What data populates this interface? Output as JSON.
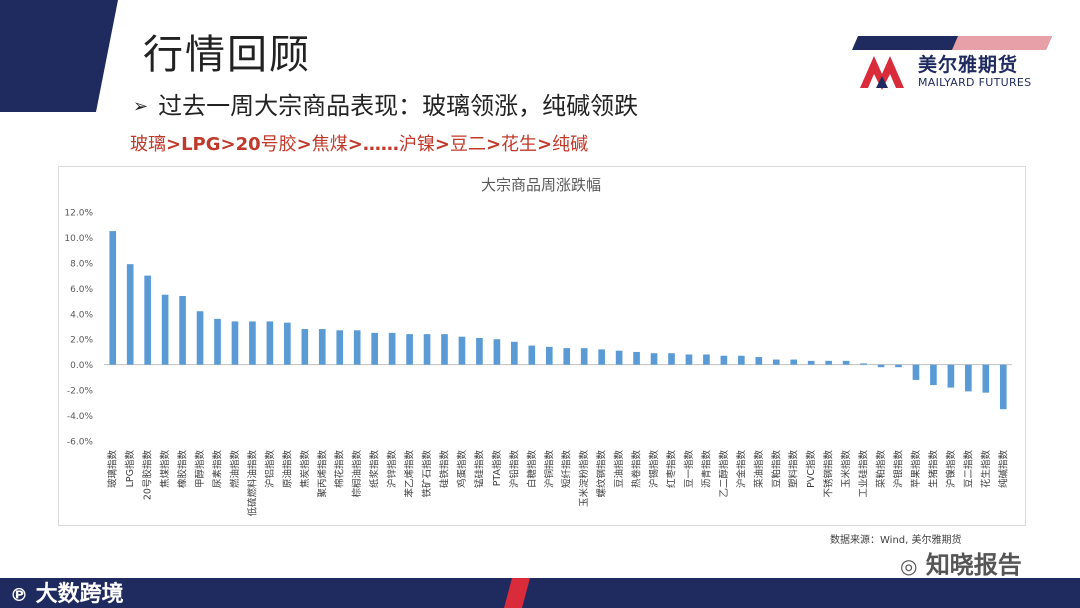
{
  "slide": {
    "title": "行情回顾",
    "subtitle": "过去一周大宗商品表现：玻璃领涨，纯碱领跌",
    "ranking": [
      {
        "text": "玻璃",
        "bold": false
      },
      {
        "text": ">LPG>20",
        "bold": true
      },
      {
        "text": "号胶",
        "bold": false
      },
      {
        "text": ">",
        "bold": true
      },
      {
        "text": "焦煤",
        "bold": false
      },
      {
        "text": ">……",
        "bold": true
      },
      {
        "text": "沪镍",
        "bold": false
      },
      {
        "text": ">",
        "bold": true
      },
      {
        "text": "豆二",
        "bold": false
      },
      {
        "text": ">",
        "bold": true
      },
      {
        "text": "花生",
        "bold": false
      },
      {
        "text": ">",
        "bold": true
      },
      {
        "text": "纯碱",
        "bold": false
      }
    ]
  },
  "logo": {
    "cn": "美尔雅期货",
    "en": "MAILYARD FUTURES"
  },
  "source": "数据来源：Wind, 美尔雅期货",
  "footer": {
    "brand": "大数跨境",
    "watermark": "知晓报告"
  },
  "colors": {
    "bar": "#5b9bd5",
    "navy": "#1f2a5e",
    "red": "#c0392b",
    "accent_red": "#d92b3a"
  },
  "chart_data": {
    "type": "bar",
    "title": "大宗商品周涨跌幅",
    "xlabel": "",
    "ylabel": "",
    "ylim": [
      -0.06,
      0.12
    ],
    "yticks": [
      0.12,
      0.1,
      0.08,
      0.06,
      0.04,
      0.02,
      0.0,
      -0.02,
      -0.04,
      -0.06
    ],
    "ytick_labels": [
      "12.0%",
      "10.0%",
      "8.0%",
      "6.0%",
      "4.0%",
      "2.0%",
      "0.0%",
      "-2.0%",
      "-4.0%",
      "-6.0%"
    ],
    "grid": false,
    "categories": [
      "玻璃指数",
      "LPG指数",
      "20号胶指数",
      "焦煤指数",
      "橡胶指数",
      "甲醇指数",
      "尿素指数",
      "燃油指数",
      "低硫燃料油指数",
      "沪铝指数",
      "原油指数",
      "焦炭指数",
      "聚丙烯指数",
      "棉花指数",
      "棕榈油指数",
      "纸浆指数",
      "沪锌指数",
      "苯乙烯指数",
      "铁矿石指数",
      "硅铁指数",
      "鸡蛋指数",
      "锰硅指数",
      "PTA指数",
      "沪铅指数",
      "白糖指数",
      "沪铜指数",
      "短纤指数",
      "玉米淀粉指数",
      "螺纹钢指数",
      "豆油指数",
      "热卷指数",
      "沪锡指数",
      "红枣指数",
      "豆一指数",
      "沥青指数",
      "乙二醇指数",
      "沪金指数",
      "菜油指数",
      "豆粕指数",
      "塑料指数",
      "PVC指数",
      "不锈钢指数",
      "玉米指数",
      "工业硅指数",
      "菜粕指数",
      "沪银指数",
      "苹果指数",
      "生猪指数",
      "沪镍指数",
      "豆二指数",
      "花生指数",
      "纯碱指数"
    ],
    "values": [
      0.105,
      0.079,
      0.07,
      0.055,
      0.054,
      0.042,
      0.036,
      0.034,
      0.034,
      0.034,
      0.033,
      0.028,
      0.028,
      0.027,
      0.027,
      0.025,
      0.025,
      0.024,
      0.024,
      0.024,
      0.022,
      0.021,
      0.02,
      0.018,
      0.015,
      0.014,
      0.013,
      0.013,
      0.012,
      0.011,
      0.01,
      0.009,
      0.009,
      0.008,
      0.008,
      0.007,
      0.007,
      0.006,
      0.004,
      0.004,
      0.003,
      0.003,
      0.003,
      0.001,
      -0.002,
      -0.002,
      -0.012,
      -0.016,
      -0.018,
      -0.021,
      -0.022,
      -0.035
    ]
  }
}
